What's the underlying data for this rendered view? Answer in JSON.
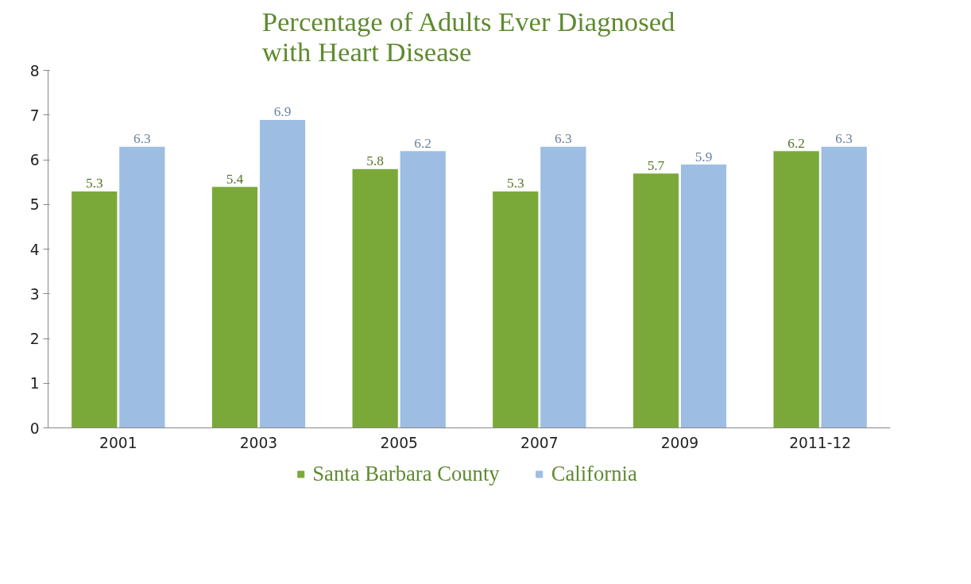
{
  "chart_data": {
    "type": "bar",
    "title": "Percentage of Adults Ever Diagnosed\nwith Heart Disease",
    "categories": [
      "2001",
      "2003",
      "2005",
      "2007",
      "2009",
      "2011-12"
    ],
    "series": [
      {
        "name": "Santa Barbara County",
        "color": "#7aa93a",
        "values": [
          5.3,
          5.4,
          5.8,
          5.3,
          5.7,
          6.2
        ]
      },
      {
        "name": "California",
        "color": "#9dbde3",
        "values": [
          6.3,
          6.9,
          6.2,
          6.3,
          5.9,
          6.3
        ]
      }
    ],
    "ylim": [
      0,
      8
    ],
    "yticks": [
      0,
      1,
      2,
      3,
      4,
      5,
      6,
      7,
      8
    ],
    "grid": false,
    "legend": "bottom",
    "data_labels": true
  }
}
